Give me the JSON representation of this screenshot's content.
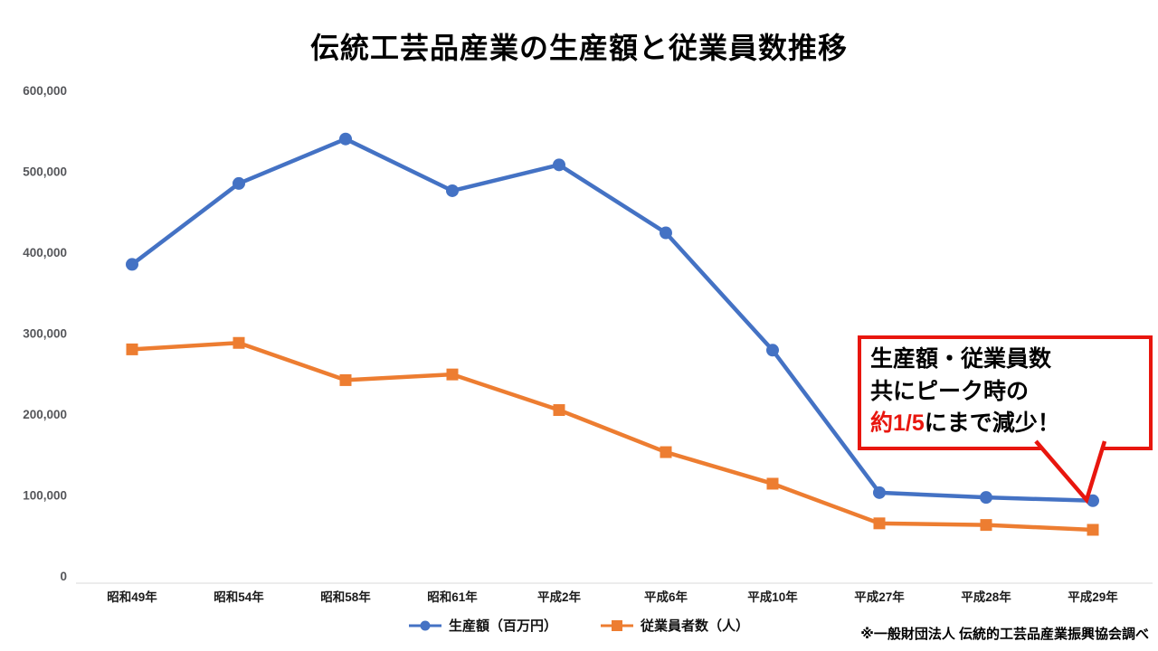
{
  "title": "伝統工芸品産業の生産額と従業員数推移",
  "source_note": "※一般財団法人 伝統的工芸品産業振興協会調べ",
  "callout": {
    "line1": "生産額・従業員数",
    "line2": "共にピーク時の",
    "line3_highlight": "約1/5",
    "line3_rest": "にまで減少！",
    "border_color": "#e8160e",
    "highlight_color": "#e8160e"
  },
  "chart_data": {
    "type": "line",
    "categories": [
      "昭和49年",
      "昭和54年",
      "昭和58年",
      "昭和61年",
      "平成2年",
      "平成6年",
      "平成10年",
      "平成27年",
      "平成28年",
      "平成29年"
    ],
    "series": [
      {
        "name": "生産額（百万円）",
        "color": "#4472C4",
        "marker": "circle",
        "values": [
          385000,
          485000,
          540000,
          476000,
          508000,
          424000,
          279000,
          103000,
          97000,
          93000
        ]
      },
      {
        "name": "従業員者数（人）",
        "color": "#ED7D31",
        "marker": "square",
        "values": [
          280000,
          288000,
          242000,
          249000,
          205000,
          153000,
          114000,
          65000,
          63000,
          57000
        ]
      }
    ],
    "title": "伝統工芸品産業の生産額と従業員数推移",
    "xlabel": "",
    "ylabel": "",
    "ylim": [
      0,
      600000
    ],
    "ytick_step": 100000,
    "grid": false,
    "legend_position": "bottom"
  }
}
